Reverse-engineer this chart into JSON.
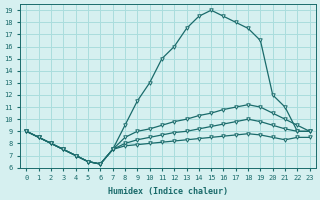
{
  "xlabel": "Humidex (Indice chaleur)",
  "ylabel": "",
  "bg_color": "#d6f0f0",
  "grid_color": "#aadddd",
  "line_color": "#1a6b6b",
  "xlim": [
    -0.5,
    23.5
  ],
  "ylim": [
    6,
    19.5
  ],
  "yticks": [
    6,
    7,
    8,
    9,
    10,
    11,
    12,
    13,
    14,
    15,
    16,
    17,
    18,
    19
  ],
  "xticks": [
    0,
    1,
    2,
    3,
    4,
    5,
    6,
    7,
    8,
    9,
    10,
    11,
    12,
    13,
    14,
    15,
    16,
    17,
    18,
    19,
    20,
    21,
    22,
    23
  ],
  "hours": [
    0,
    1,
    2,
    3,
    4,
    5,
    6,
    7,
    8,
    9,
    10,
    11,
    12,
    13,
    14,
    15,
    16,
    17,
    18,
    19,
    20,
    21,
    22,
    23
  ],
  "main_curve": [
    9.0,
    8.5,
    8.0,
    7.5,
    7.0,
    6.5,
    6.3,
    7.5,
    9.5,
    11.5,
    13.0,
    15.0,
    16.0,
    17.5,
    18.5,
    19.0,
    18.5,
    18.0,
    17.5,
    16.5,
    12.0,
    11.0,
    9.0,
    9.0
  ],
  "line2": [
    9.0,
    8.5,
    8.0,
    7.5,
    7.0,
    6.5,
    6.3,
    7.5,
    8.5,
    9.0,
    9.2,
    9.5,
    9.8,
    10.0,
    10.3,
    10.5,
    10.8,
    11.0,
    11.2,
    11.0,
    10.5,
    10.0,
    9.5,
    9.0
  ],
  "line3": [
    9.0,
    8.5,
    8.0,
    7.5,
    7.0,
    6.5,
    6.3,
    7.5,
    8.0,
    8.3,
    8.5,
    8.7,
    8.9,
    9.0,
    9.2,
    9.4,
    9.6,
    9.8,
    10.0,
    9.8,
    9.5,
    9.2,
    9.0,
    9.0
  ],
  "line4": [
    9.0,
    8.5,
    8.0,
    7.5,
    7.0,
    6.5,
    6.3,
    7.5,
    7.8,
    7.9,
    8.0,
    8.1,
    8.2,
    8.3,
    8.4,
    8.5,
    8.6,
    8.7,
    8.8,
    8.7,
    8.5,
    8.3,
    8.5,
    8.5
  ]
}
